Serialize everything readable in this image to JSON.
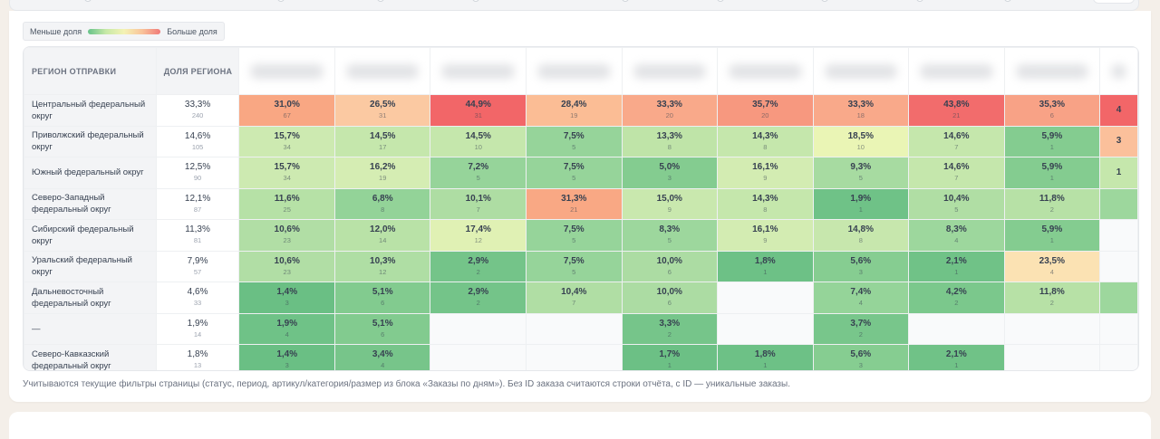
{
  "legend": {
    "less_label": "Меньше доля",
    "more_label": "Больше доля"
  },
  "table": {
    "region_header": "РЕГИОН ОТПРАВКИ",
    "share_header": "ДОЛЯ РЕГИОНА",
    "rows": [
      {
        "region": "Центральный федеральный округ",
        "share": "33,3%",
        "count": "240",
        "cells": [
          [
            "31,0%",
            "67",
            "#f9a783"
          ],
          [
            "26,5%",
            "31",
            "#fbc9a2"
          ],
          [
            "44,9%",
            "31",
            "#f26668"
          ],
          [
            "28,4%",
            "19",
            "#fbbd95"
          ],
          [
            "33,3%",
            "20",
            "#f9a98a"
          ],
          [
            "35,7%",
            "20",
            "#f7987f"
          ],
          [
            "33,3%",
            "18",
            "#f9a98a"
          ],
          [
            "43,8%",
            "21",
            "#f26c6c"
          ],
          [
            "35,3%",
            "6",
            "#f8a286"
          ],
          [
            "4",
            "",
            "#f26668"
          ]
        ]
      },
      {
        "region": "Приволжский федеральный округ",
        "share": "14,6%",
        "count": "105",
        "cells": [
          [
            "15,7%",
            "34",
            "#cdeab1"
          ],
          [
            "14,5%",
            "17",
            "#c5e7ac"
          ],
          [
            "14,5%",
            "10",
            "#c5e7ac"
          ],
          [
            "7,5%",
            "5",
            "#96d49a"
          ],
          [
            "13,3%",
            "8",
            "#bfe4a8"
          ],
          [
            "14,3%",
            "8",
            "#c5e7ac"
          ],
          [
            "18,5%",
            "10",
            "#eaf5b5"
          ],
          [
            "14,6%",
            "7",
            "#c5e7ac"
          ],
          [
            "5,9%",
            "1",
            "#84cc90"
          ],
          [
            "3",
            "",
            "#fbc09b"
          ]
        ]
      },
      {
        "region": "Южный федеральный округ",
        "share": "12,5%",
        "count": "90",
        "cells": [
          [
            "15,7%",
            "34",
            "#cdeab1"
          ],
          [
            "16,2%",
            "19",
            "#d5edb3"
          ],
          [
            "7,2%",
            "5",
            "#96d49a"
          ],
          [
            "7,5%",
            "5",
            "#96d49a"
          ],
          [
            "5,0%",
            "3",
            "#84cc90"
          ],
          [
            "16,1%",
            "9",
            "#d3ecb2"
          ],
          [
            "9,3%",
            "5",
            "#a7dba1"
          ],
          [
            "14,6%",
            "7",
            "#c5e7ac"
          ],
          [
            "5,9%",
            "1",
            "#84cc90"
          ],
          [
            "1",
            "",
            "#c5e7ac"
          ]
        ]
      },
      {
        "region": "Северо-Западный федеральный округ",
        "share": "12,1%",
        "count": "87",
        "cells": [
          [
            "11,6%",
            "25",
            "#b6e1a6"
          ],
          [
            "6,8%",
            "8",
            "#93d398"
          ],
          [
            "10,1%",
            "7",
            "#aedda3"
          ],
          [
            "31,3%",
            "21",
            "#f9a884"
          ],
          [
            "15,0%",
            "9",
            "#c9e8ae"
          ],
          [
            "14,3%",
            "8",
            "#c5e7ac"
          ],
          [
            "1,9%",
            "1",
            "#6fc287"
          ],
          [
            "10,4%",
            "5",
            "#b0dea4"
          ],
          [
            "11,8%",
            "2",
            "#b7e1a6"
          ],
          [
            "",
            "",
            "#9dd79d"
          ]
        ]
      },
      {
        "region": "Сибирский федеральный округ",
        "share": "11,3%",
        "count": "81",
        "cells": [
          [
            "10,6%",
            "23",
            "#b1dea5"
          ],
          [
            "12,0%",
            "14",
            "#b9e2a7"
          ],
          [
            "17,4%",
            "12",
            "#e0f1b4"
          ],
          [
            "7,5%",
            "5",
            "#96d49a"
          ],
          [
            "8,3%",
            "5",
            "#9dd79d"
          ],
          [
            "16,1%",
            "9",
            "#d3ecb2"
          ],
          [
            "14,8%",
            "8",
            "#c7e7ad"
          ],
          [
            "8,3%",
            "4",
            "#9dd79d"
          ],
          [
            "5,9%",
            "1",
            "#84cc90"
          ],
          [
            "",
            "",
            "empty"
          ]
        ]
      },
      {
        "region": "Уральский федеральный округ",
        "share": "7,9%",
        "count": "57",
        "cells": [
          [
            "10,6%",
            "23",
            "#b1dea5"
          ],
          [
            "10,3%",
            "12",
            "#afdea4"
          ],
          [
            "2,9%",
            "2",
            "#74c489"
          ],
          [
            "7,5%",
            "5",
            "#96d49a"
          ],
          [
            "10,0%",
            "6",
            "#acdca3"
          ],
          [
            "1,8%",
            "1",
            "#6dc186"
          ],
          [
            "5,6%",
            "3",
            "#86cd91"
          ],
          [
            "2,1%",
            "1",
            "#70c287"
          ],
          [
            "23,5%",
            "4",
            "#fbe2b3"
          ],
          [
            "",
            "",
            "empty"
          ]
        ]
      },
      {
        "region": "Дальневосточный федеральный округ",
        "share": "4,6%",
        "count": "33",
        "cells": [
          [
            "1,4%",
            "3",
            "#6abf84"
          ],
          [
            "5,1%",
            "6",
            "#82cb8f"
          ],
          [
            "2,9%",
            "2",
            "#74c489"
          ],
          [
            "10,4%",
            "7",
            "#b0dea4"
          ],
          [
            "10,0%",
            "6",
            "#acdca3"
          ],
          [
            "",
            "",
            "empty"
          ],
          [
            "7,4%",
            "4",
            "#95d499"
          ],
          [
            "4,2%",
            "2",
            "#7bc88c"
          ],
          [
            "11,8%",
            "2",
            "#b7e1a6"
          ],
          [
            "",
            "",
            "#9dd79d"
          ]
        ]
      },
      {
        "region": "—",
        "share": "1,9%",
        "count": "14",
        "cells": [
          [
            "1,9%",
            "4",
            "#6fc287"
          ],
          [
            "5,1%",
            "6",
            "#82cb8f"
          ],
          [
            "",
            "",
            "empty"
          ],
          [
            "",
            "",
            "empty"
          ],
          [
            "3,3%",
            "2",
            "#76c58a"
          ],
          [
            "",
            "",
            "empty"
          ],
          [
            "3,7%",
            "2",
            "#78c68b"
          ],
          [
            "",
            "",
            "empty"
          ],
          [
            "",
            "",
            "empty"
          ],
          [
            "",
            "",
            "empty"
          ]
        ]
      },
      {
        "region": "Северо-Кавказский федеральный округ",
        "share": "1,8%",
        "count": "13",
        "cells": [
          [
            "1,4%",
            "3",
            "#6abf84"
          ],
          [
            "3,4%",
            "4",
            "#77c58a"
          ],
          [
            "",
            "",
            "empty"
          ],
          [
            "",
            "",
            "empty"
          ],
          [
            "1,7%",
            "1",
            "#6cc085"
          ],
          [
            "1,8%",
            "1",
            "#6dc186"
          ],
          [
            "5,6%",
            "3",
            "#86cd91"
          ],
          [
            "2,1%",
            "1",
            "#70c287"
          ],
          [
            "",
            "",
            "empty"
          ],
          [
            "",
            "",
            "empty"
          ]
        ]
      }
    ]
  },
  "note": "Учитываются текущие фильтры страницы (статус, период, артикул/категория/размер из блока «Заказы по дням»). Без ID заказа считаются строки отчёта, с ID — уникальные заказы."
}
